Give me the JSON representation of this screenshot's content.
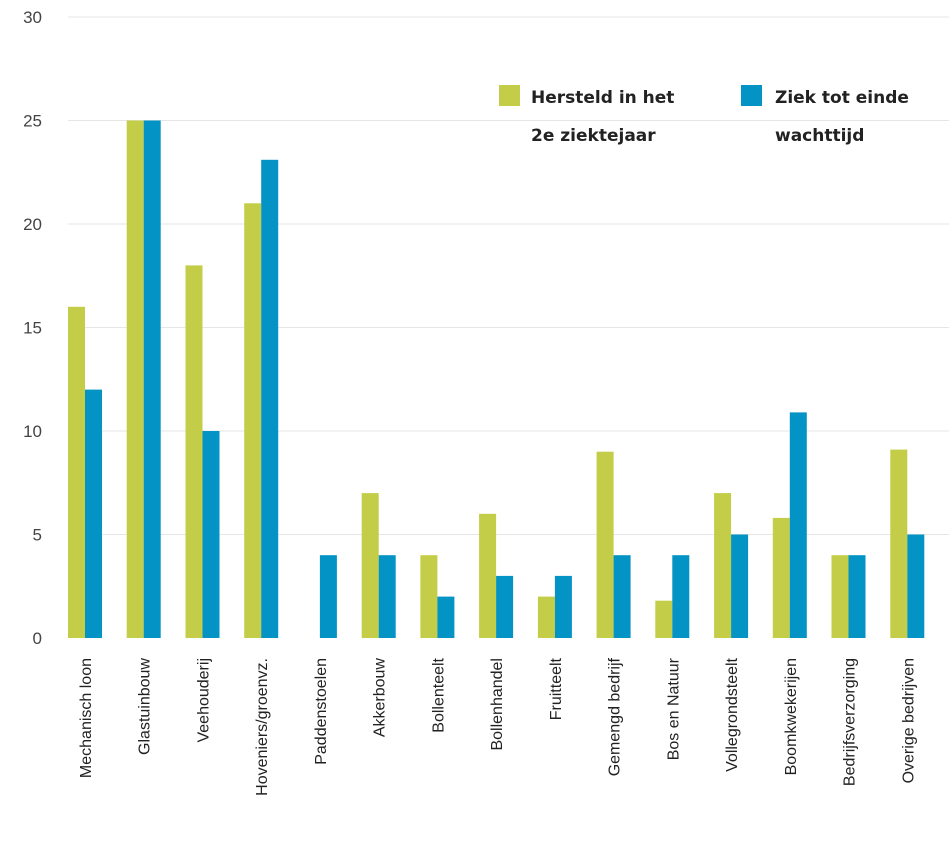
{
  "chart_data": {
    "type": "bar",
    "categories": [
      "Mechanisch loon",
      "Glastuinbouw",
      "Veehouderij",
      "Hoveniers/groenvz.",
      "Paddenstoelen",
      "Akkerbouw",
      "Bollenteelt",
      "Bollenhandel",
      "Fruitteelt",
      "Gemengd bedrijf",
      "Bos en Natuur",
      "Vollegrondsteelt",
      "Boomkwekerijen",
      "Bedrijfsverzorging",
      "Overige bedrijven"
    ],
    "series": [
      {
        "name": "Hersteld in het 2e ziektejaar",
        "name_lines": [
          "Hersteld in het",
          "2e ziektejaar"
        ],
        "color": "#c3cd47",
        "values": [
          16,
          25,
          18,
          21,
          0,
          7,
          4,
          6,
          2,
          9,
          1.8,
          7,
          5.8,
          4,
          9.1
        ]
      },
      {
        "name": "Ziek tot einde wachttijd",
        "name_lines": [
          "Ziek tot einde",
          "wachttijd"
        ],
        "color": "#0393c4",
        "values": [
          12,
          25,
          10,
          23.1,
          4,
          4,
          2,
          3,
          3,
          4,
          4,
          5,
          10.9,
          4,
          5
        ]
      }
    ],
    "ylim": [
      0,
      30
    ],
    "yticks": [
      0,
      5,
      10,
      15,
      20,
      25,
      30
    ],
    "grid": true,
    "legend_position": "top-right",
    "xlabel": "",
    "ylabel": "",
    "title": ""
  }
}
